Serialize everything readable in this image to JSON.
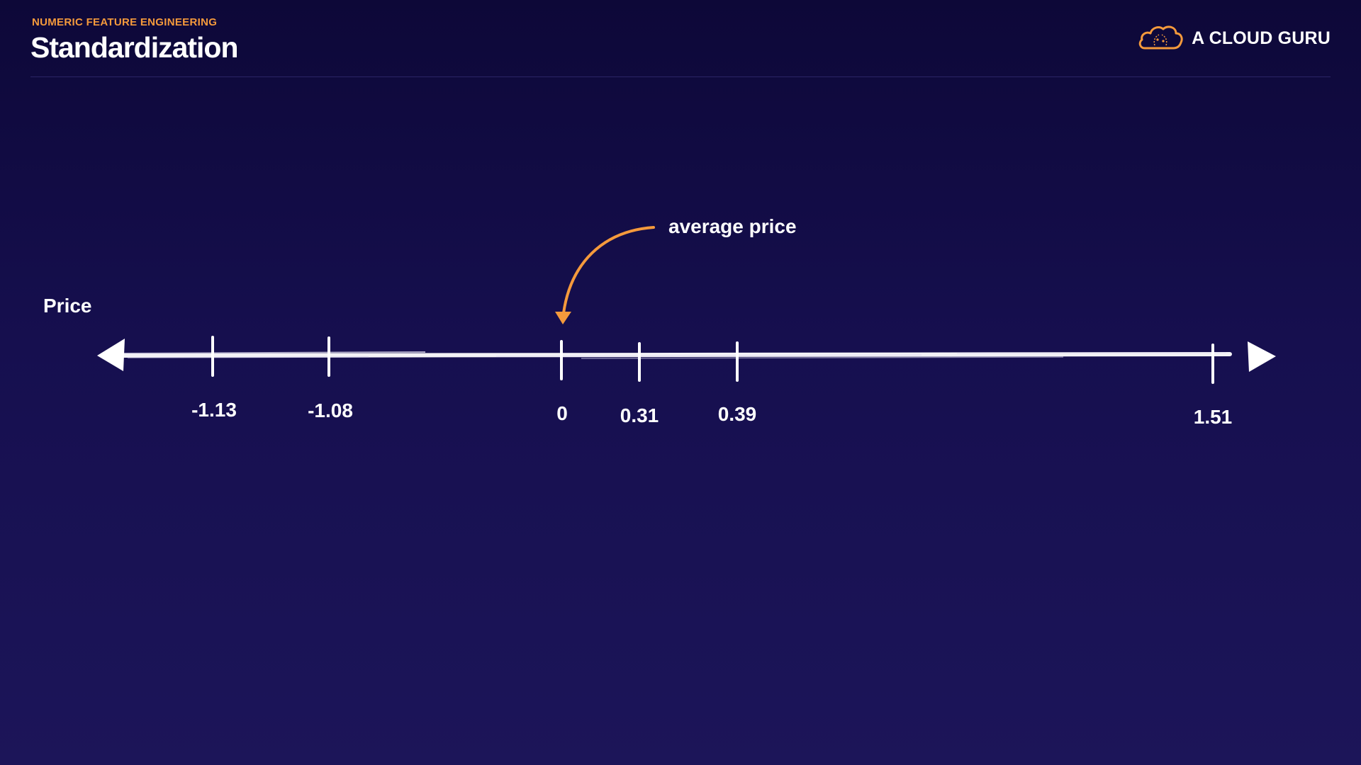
{
  "header": {
    "eyebrow": "NUMERIC FEATURE ENGINEERING",
    "title": "Standardization",
    "brand": "A CLOUD GURU",
    "brand_icon": "cloud-logo-icon",
    "brand_color": "#f59a3c"
  },
  "diagram": {
    "axis_label": "Price",
    "annotation": "average price",
    "annotation_color": "#f59a3c",
    "ticks": [
      "-1.13",
      "-1.08",
      "0",
      "0.31",
      "0.39",
      "1.51"
    ]
  }
}
